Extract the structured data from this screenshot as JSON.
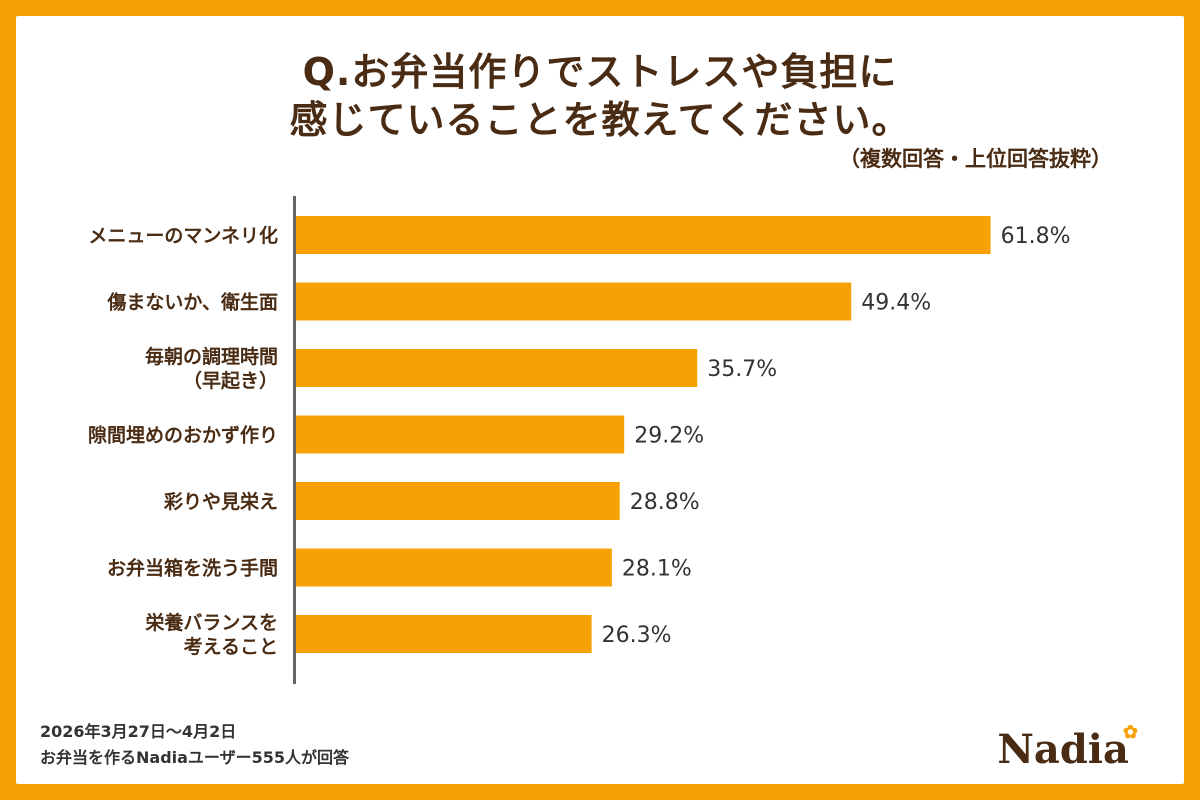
{
  "title_line1": "Q.お弁当作りでストレスや負担に",
  "title_line2": "感じていることを教えてください。",
  "subtitle": "（複数回答・上位回答抜粋）",
  "footnote_date": "2026年3月27日～4月2日",
  "footnote_sample": "お弁当を作るNadiaユーザー555人が回答",
  "logo_text": "Nadia",
  "colors": {
    "bar": "#f6a207",
    "frame": "#f6a207",
    "text": "#4a2c14",
    "axis": "#666666"
  },
  "chart_data": {
    "type": "bar",
    "orientation": "horizontal",
    "categories": [
      [
        "メニューのマンネリ化"
      ],
      [
        "傷まないか、衛生面"
      ],
      [
        "毎朝の調理時間",
        "（早起き）"
      ],
      [
        "隙間埋めのおかず作り"
      ],
      [
        "彩りや見栄え"
      ],
      [
        "お弁当箱を洗う手間"
      ],
      [
        "栄養バランスを",
        "考えること"
      ]
    ],
    "values": [
      61.8,
      49.4,
      35.7,
      29.2,
      28.8,
      28.1,
      26.3
    ],
    "value_labels": [
      "61.8%",
      "49.4%",
      "35.7%",
      "29.2%",
      "28.8%",
      "28.1%",
      "26.3%"
    ],
    "title": "Q.お弁当作りでストレスや負担に感じていることを教えてください。",
    "xlabel": "",
    "ylabel": "",
    "xlim": [
      0,
      100
    ]
  }
}
